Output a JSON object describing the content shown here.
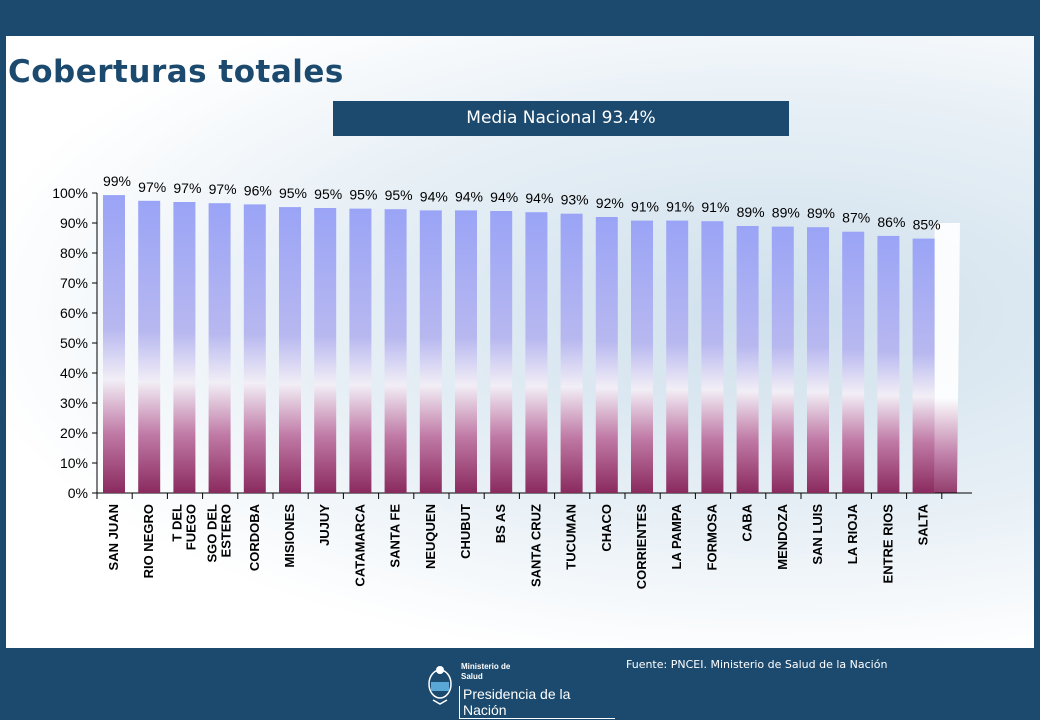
{
  "title": "Coberturas totales",
  "media_label": "Media Nacional 93.4%",
  "footer": {
    "source": "Fuente: PNCEI. Ministerio de Salud de la Nación",
    "ministry_line1": "Ministerio de",
    "ministry_line2": "Salud",
    "presidencia": "Presidencia de la Nación"
  },
  "colors": {
    "navy": "#1c4a6e",
    "bar_top": "#9aa4f6",
    "bar_bottom": "#8a2a5e"
  },
  "chart_data": {
    "type": "bar",
    "categories": [
      "SAN JUAN",
      "RIO NEGRO",
      "T DEL FUEGO",
      "SGO DEL ESTERO",
      "CORDOBA",
      "MISIONES",
      "JUJUY",
      "CATAMARCA",
      "SANTA FE",
      "NEUQUEN",
      "CHUBUT",
      "BS AS",
      "SANTA CRUZ",
      "TUCUMAN",
      "CHACO",
      "CORRIENTES",
      "LA PAMPA",
      "FORMOSA",
      "CABA",
      "MENDOZA",
      "SAN LUIS",
      "LA RIOJA",
      "ENTRE RIOS",
      "SALTA"
    ],
    "category_lines": [
      [
        "SAN JUAN"
      ],
      [
        "RIO NEGRO"
      ],
      [
        "T DEL",
        "FUEGO"
      ],
      [
        "SGO DEL",
        "ESTERO"
      ],
      [
        "CORDOBA"
      ],
      [
        "MISIONES"
      ],
      [
        "JUJUY"
      ],
      [
        "CATAMARCA"
      ],
      [
        "SANTA FE"
      ],
      [
        "NEUQUEN"
      ],
      [
        "CHUBUT"
      ],
      [
        "BS AS"
      ],
      [
        "SANTA CRUZ"
      ],
      [
        "TUCUMAN"
      ],
      [
        "CHACO"
      ],
      [
        "CORRIENTES"
      ],
      [
        "LA PAMPA"
      ],
      [
        "FORMOSA"
      ],
      [
        "CABA"
      ],
      [
        "MENDOZA"
      ],
      [
        "SAN LUIS"
      ],
      [
        "LA RIOJA"
      ],
      [
        "ENTRE RIOS"
      ],
      [
        "SALTA"
      ]
    ],
    "values": [
      99.3,
      97.4,
      97.0,
      96.6,
      96.2,
      95.3,
      95.0,
      94.8,
      94.6,
      94.2,
      94.2,
      94.0,
      93.6,
      93.1,
      92.0,
      90.8,
      90.8,
      90.6,
      89.0,
      88.8,
      88.6,
      87.1,
      85.7,
      84.8
    ],
    "data_labels": [
      "99%",
      "97%",
      "97%",
      "97%",
      "96%",
      "95%",
      "95%",
      "95%",
      "95%",
      "94%",
      "94%",
      "94%",
      "94%",
      "93%",
      "92%",
      "91%",
      "91%",
      "91%",
      "89%",
      "89%",
      "89%",
      "87%",
      "86%",
      "85%"
    ],
    "y_ticks": [
      "0%",
      "10%",
      "20%",
      "30%",
      "40%",
      "50%",
      "60%",
      "70%",
      "80%",
      "90%",
      "100%"
    ],
    "ylim": [
      0,
      100
    ],
    "xlabel": "",
    "ylabel": "",
    "legend": "none",
    "grid": false
  }
}
